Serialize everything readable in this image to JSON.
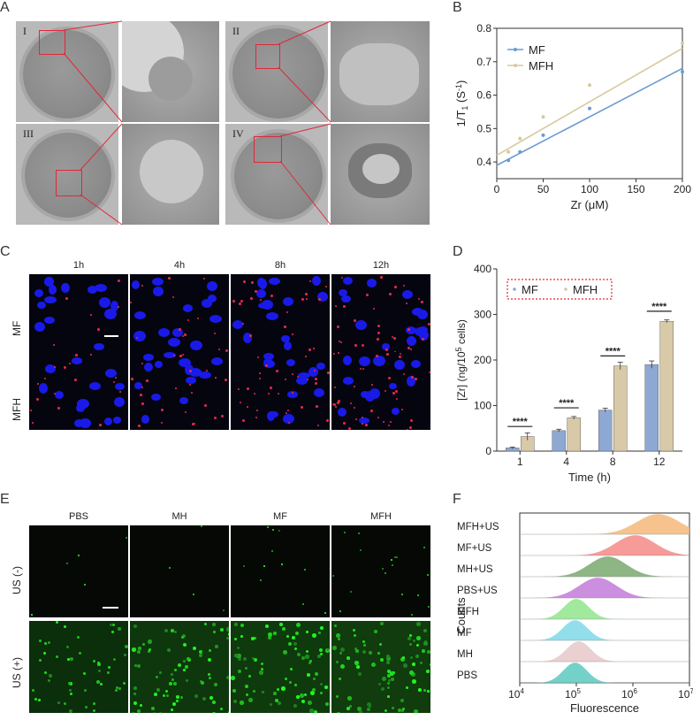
{
  "panels": {
    "A": "A",
    "B": "B",
    "C": "C",
    "D": "D",
    "E": "E",
    "F": "F"
  },
  "panelA": {
    "roman": [
      "I",
      "II",
      "III",
      "IV"
    ]
  },
  "panelC": {
    "cols": [
      "1h",
      "4h",
      "8h",
      "12h"
    ],
    "rows": [
      "MF",
      "MFH"
    ]
  },
  "panelE": {
    "cols": [
      "PBS",
      "MH",
      "MF",
      "MFH"
    ],
    "rows": [
      "US (-)",
      "US (+)"
    ]
  },
  "chart_data": [
    {
      "panel": "B",
      "type": "scatter",
      "xlabel": "Zr (μM)",
      "ylabel": "1/T1 (S-1)",
      "ylabel_main": "1/T",
      "ylabel_sub": "1",
      "ylabel_unit": " (S",
      "ylabel_sup": "-1",
      "ylabel_close": ")",
      "xlim": [
        0,
        200
      ],
      "ylim": [
        0.35,
        0.8
      ],
      "xticks": [
        "0",
        "50",
        "100",
        "150",
        "200"
      ],
      "yticks": [
        "0.4",
        "0.5",
        "0.6",
        "0.7",
        "0.8"
      ],
      "legend_position": "top-left",
      "series": [
        {
          "name": "MF",
          "color": "#6b9bd2",
          "x": [
            12.5,
            25,
            50,
            100,
            200
          ],
          "y": [
            0.405,
            0.43,
            0.48,
            0.56,
            0.67
          ],
          "fit": [
            [
              0,
              0.39
            ],
            [
              200,
              0.68
            ]
          ]
        },
        {
          "name": "MFH",
          "color": "#d6ca9e",
          "x": [
            12.5,
            25,
            50,
            100,
            200
          ],
          "y": [
            0.43,
            0.47,
            0.535,
            0.63,
            0.755
          ],
          "fit": [
            [
              0,
              0.42
            ],
            [
              200,
              0.74
            ]
          ]
        }
      ]
    },
    {
      "panel": "D",
      "type": "bar",
      "xlabel": "Time (h)",
      "ylabel": "[Zr] (ng/10^5 cells)",
      "ylabel_a": "[Zr] (ng/10",
      "ylabel_sup": "5",
      "ylabel_b": " cells)",
      "categories": [
        "1",
        "4",
        "8",
        "12"
      ],
      "ylim": [
        0,
        400
      ],
      "yticks": [
        "0",
        "100",
        "200",
        "300",
        "400"
      ],
      "significance": [
        "****",
        "****",
        "****",
        "****"
      ],
      "legend_position": "top-left",
      "series": [
        {
          "name": "MF",
          "color": "#8ea8d4",
          "values": [
            7,
            45,
            90,
            190
          ],
          "err": [
            2,
            3,
            4,
            8
          ]
        },
        {
          "name": "MFH",
          "color": "#d8c9a8",
          "values": [
            32,
            73,
            187,
            285
          ],
          "err": [
            8,
            3,
            8,
            3
          ]
        }
      ]
    },
    {
      "panel": "F",
      "type": "area",
      "xlabel": "Fluorescence",
      "ylabel": "Counts",
      "xscale": "log",
      "xlim": [
        10000,
        10000000
      ],
      "xticks": [
        "10",
        "10",
        "10",
        "10"
      ],
      "xtick_exp": [
        "4",
        "5",
        "6",
        "7"
      ],
      "series": [
        {
          "name": "MFH+US",
          "color": "#f5b97a",
          "peak": 2800000.0,
          "width": 0.38
        },
        {
          "name": "MF+US",
          "color": "#f48a86",
          "peak": 1100000.0,
          "width": 0.35
        },
        {
          "name": "MH+US",
          "color": "#7aa86e",
          "peak": 360000.0,
          "width": 0.33
        },
        {
          "name": "PBS+US",
          "color": "#c37ad8",
          "peak": 240000.0,
          "width": 0.33
        },
        {
          "name": "MFH",
          "color": "#8fe58c",
          "peak": 100000.0,
          "width": 0.22
        },
        {
          "name": "MF",
          "color": "#7fd8e8",
          "peak": 95000.0,
          "width": 0.22
        },
        {
          "name": "MH",
          "color": "#e6c8c8",
          "peak": 110000.0,
          "width": 0.22
        },
        {
          "name": "PBS",
          "color": "#5cc9c0",
          "peak": 95000.0,
          "width": 0.21
        }
      ]
    }
  ]
}
